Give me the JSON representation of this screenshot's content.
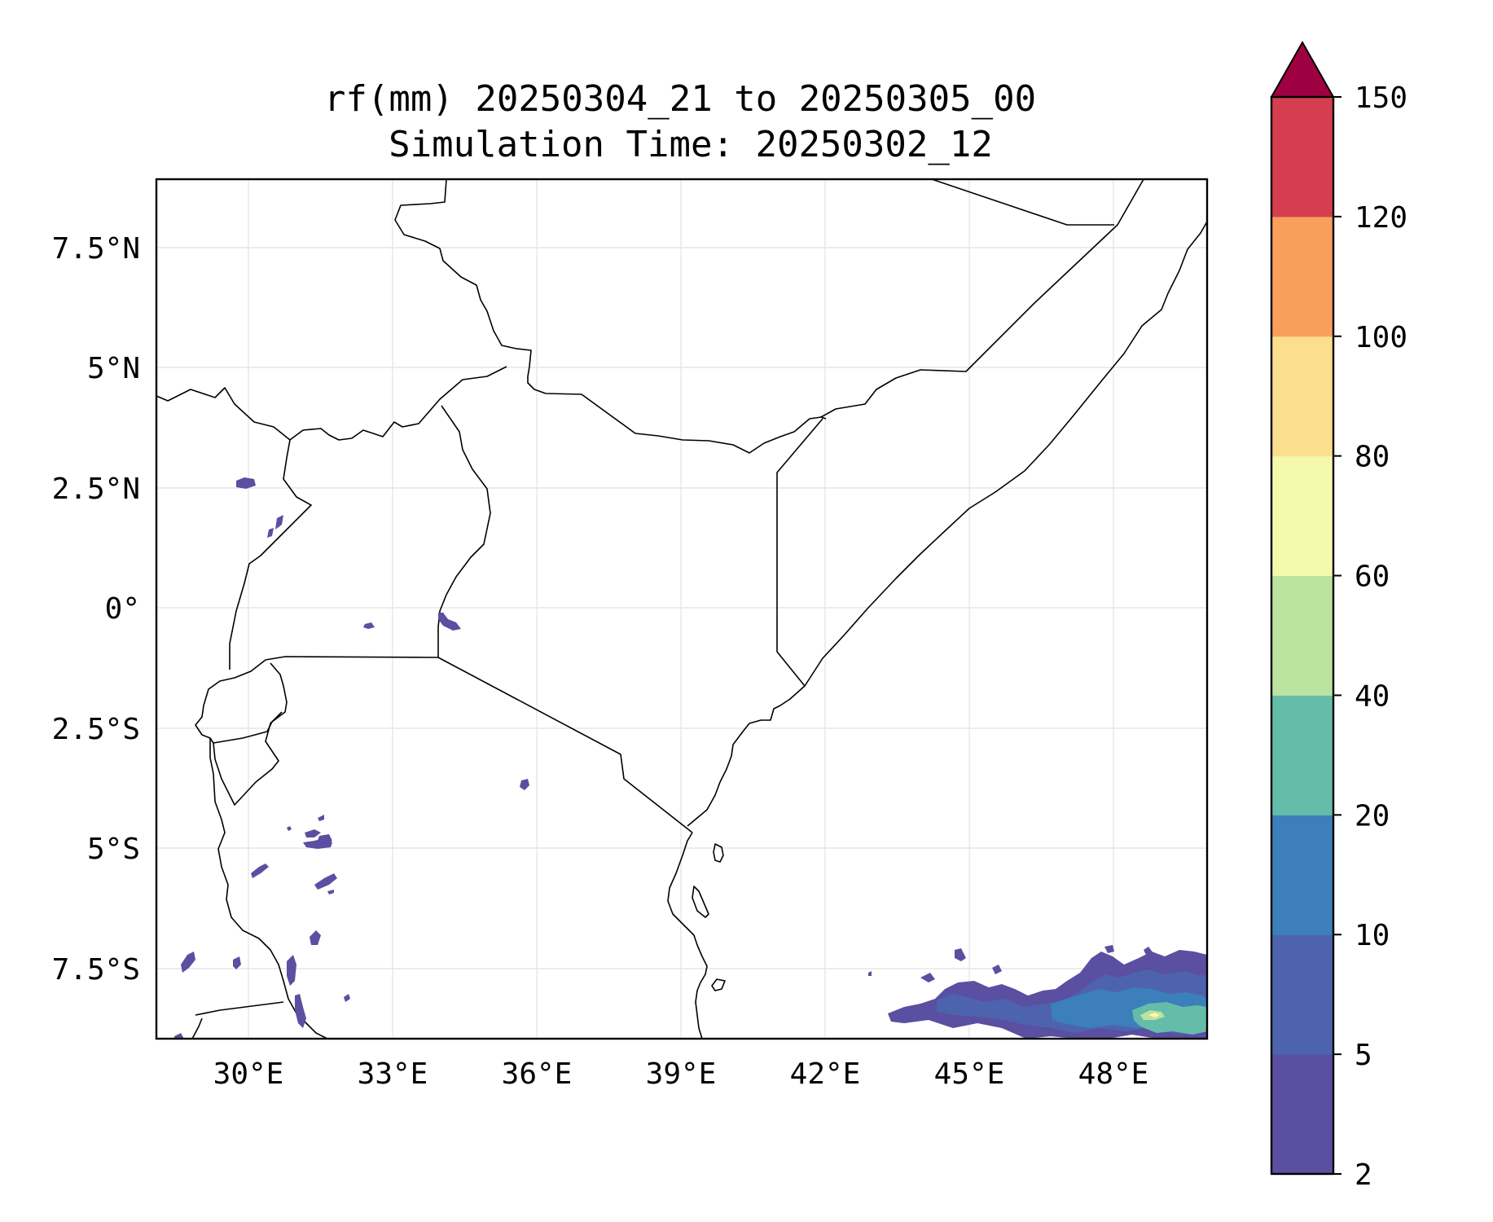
{
  "title_line1": "rf(mm) 20250304_21 to 20250305_00",
  "title_line2": "Simulation Time: 20250302_12",
  "lon_ticks": [
    "30°E",
    "33°E",
    "36°E",
    "39°E",
    "42°E",
    "45°E",
    "48°E"
  ],
  "lat_ticks": [
    "7.5°N",
    "5°N",
    "2.5°N",
    "0°",
    "2.5°S",
    "5°S",
    "7.5°S"
  ],
  "colorbar": {
    "labels": [
      "2",
      "5",
      "10",
      "20",
      "40",
      "60",
      "80",
      "100",
      "120",
      "150"
    ],
    "colors": [
      "#5a4fa0",
      "#4e63ad",
      "#3c7fbb",
      "#64bda8",
      "#bde3a0",
      "#f5f9ab",
      "#fbdf8e",
      "#f99f5c",
      "#d53e4f",
      "#9e0142"
    ],
    "extend": "max"
  },
  "chart_data": {
    "type": "heatmap",
    "title": "rf(mm) 20250304_21 to 20250305_00\nSimulation Time: 20250302_12",
    "x_axis": "longitude",
    "y_axis": "latitude",
    "xlim": [
      28.1,
      50.0
    ],
    "ylim": [
      -8.9,
      9.0
    ],
    "x_ticks": [
      30,
      33,
      36,
      39,
      42,
      45,
      48
    ],
    "y_ticks": [
      7.5,
      5,
      2.5,
      0,
      -2.5,
      -5,
      -7.5
    ],
    "grid": true,
    "colorbar_levels": [
      2,
      5,
      10,
      20,
      40,
      60,
      80,
      100,
      120,
      150
    ],
    "colorbar_extend": "max"
  }
}
